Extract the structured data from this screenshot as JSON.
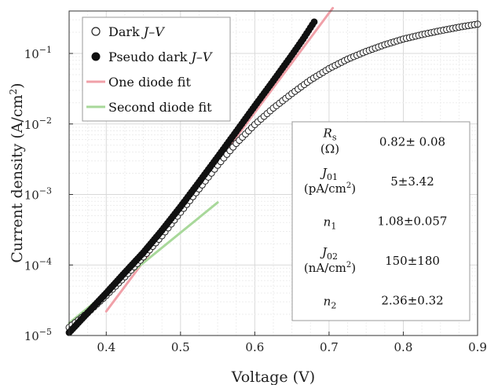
{
  "chart_data": {
    "type": "scatter",
    "xlabel": "Voltage (V)",
    "ylabel_base": "Current density (A/cm",
    "ylabel_sup": "2",
    "ylabel_end": ")",
    "xlim": [
      0.35,
      0.9
    ],
    "ylim": [
      1e-05,
      0.4
    ],
    "y_scale": "log",
    "grid": true,
    "legend_position": "top-left",
    "x_ticks": [
      0.4,
      0.5,
      0.6,
      0.7,
      0.8,
      0.9
    ],
    "x_tick_labels": [
      "0.4",
      "0.5",
      "0.6",
      "0.7",
      "0.8",
      "0.9"
    ],
    "y_ticks": [
      {
        "value": 1e-05,
        "base": "10",
        "exp": "−5"
      },
      {
        "value": 0.0001,
        "base": "10",
        "exp": "−4"
      },
      {
        "value": 0.001,
        "base": "10",
        "exp": "−3"
      },
      {
        "value": 0.01,
        "base": "10",
        "exp": "−2"
      },
      {
        "value": 0.1,
        "base": "10",
        "exp": "−1"
      }
    ],
    "series": [
      {
        "name_main": "Dark ",
        "name_italic": "J–V",
        "marker": "open-circle",
        "color": "#222222",
        "x": [
          0.35,
          0.375,
          0.4,
          0.425,
          0.45,
          0.475,
          0.5,
          0.525,
          0.55,
          0.575,
          0.6,
          0.625,
          0.65,
          0.675,
          0.7,
          0.725,
          0.75,
          0.775,
          0.8,
          0.825,
          0.85,
          0.875,
          0.9
        ],
        "y": [
          1.3e-05,
          2.1e-05,
          3.7e-05,
          6.8e-05,
          0.00013,
          0.00026,
          0.00056,
          0.0012,
          0.0026,
          0.0053,
          0.0098,
          0.0168,
          0.027,
          0.042,
          0.061,
          0.083,
          0.107,
          0.133,
          0.16,
          0.185,
          0.21,
          0.236,
          0.26
        ]
      },
      {
        "name_main": "Pseudo dark ",
        "name_italic": "J–V",
        "marker": "filled-circle",
        "color": "#111111",
        "x": [
          0.35,
          0.375,
          0.4,
          0.425,
          0.45,
          0.475,
          0.5,
          0.525,
          0.55,
          0.575,
          0.6,
          0.625,
          0.65,
          0.665,
          0.68
        ],
        "y": [
          1.1e-05,
          2.1e-05,
          4e-05,
          7.8e-05,
          0.00015,
          0.00031,
          0.00067,
          0.0015,
          0.0034,
          0.0078,
          0.018,
          0.041,
          0.095,
          0.16,
          0.28
        ]
      },
      {
        "name_main": "One diode fit",
        "marker": "line",
        "color": "#f0a0a8",
        "x": [
          0.4,
          0.705
        ],
        "y": [
          2.2e-05,
          0.44
        ]
      },
      {
        "name_main": "Second diode fit",
        "marker": "line",
        "color": "#a8d89a",
        "x": [
          0.35,
          0.55
        ],
        "y": [
          1.5e-05,
          0.00077
        ]
      }
    ],
    "table": {
      "rows": [
        {
          "label": "R",
          "sub": "s",
          "unit": "(Ω)",
          "unit_sup": "",
          "unit_end": "",
          "value": "0.82± 0.08"
        },
        {
          "label": "J",
          "sub": "01",
          "unit": "(pA/cm",
          "unit_sup": "2",
          "unit_end": ")",
          "value": "5±3.42"
        },
        {
          "label": "n",
          "sub": "1",
          "unit": "",
          "unit_sup": "",
          "unit_end": "",
          "value": "1.08±0.057"
        },
        {
          "label": "J",
          "sub": "02",
          "unit": "(nA/cm",
          "unit_sup": "2",
          "unit_end": ")",
          "value": "150±180"
        },
        {
          "label": "n",
          "sub": "2",
          "unit": "",
          "unit_sup": "",
          "unit_end": "",
          "value": "2.36±0.32"
        }
      ]
    }
  }
}
